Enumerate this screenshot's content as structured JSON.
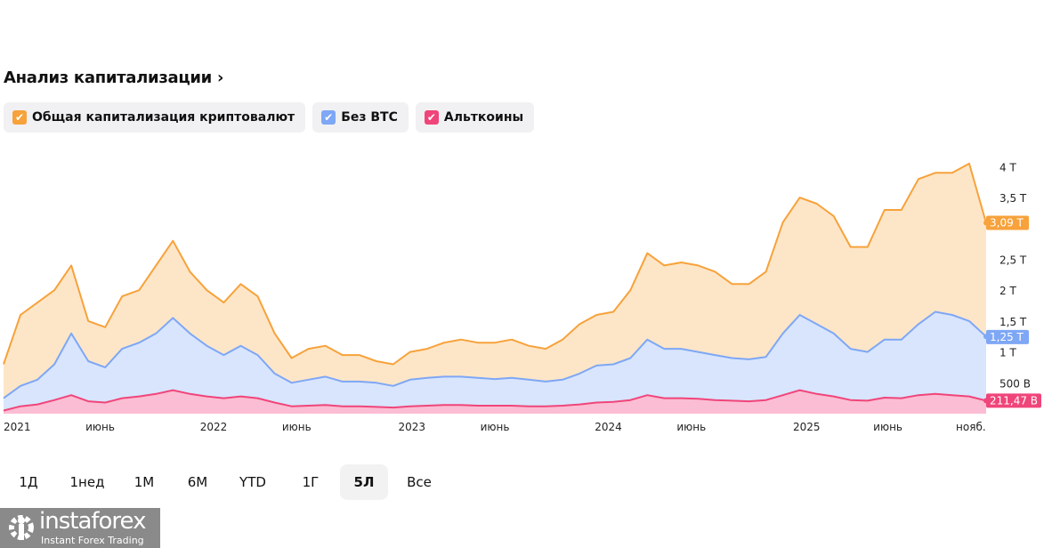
{
  "header": {
    "title": "Анализ капитализации",
    "chevron": "›"
  },
  "legend": [
    {
      "label": "Общая капитализация криптовалют",
      "color": "#f7a23b"
    },
    {
      "label": "Без BTC",
      "color": "#7ea7f5"
    },
    {
      "label": "Альткоины",
      "color": "#f0457a"
    }
  ],
  "chart_data": {
    "type": "area",
    "x_start": "2021-01",
    "x_step": "month",
    "yunit": "T",
    "ylim": [
      0,
      4.3
    ],
    "yticks": [
      {
        "v": 0.5,
        "label": "500 B"
      },
      {
        "v": 1,
        "label": "1 T"
      },
      {
        "v": 1.5,
        "label": "1,5 T"
      },
      {
        "v": 2,
        "label": "2 T"
      },
      {
        "v": 2.5,
        "label": "2,5 T"
      },
      {
        "v": 3,
        "label": "3 T"
      },
      {
        "v": 3.5,
        "label": "3,5 T"
      },
      {
        "v": 4,
        "label": "4 T"
      }
    ],
    "xticks": [
      {
        "i": 0.8,
        "label": "2021"
      },
      {
        "i": 5.7,
        "label": "июнь"
      },
      {
        "i": 12.4,
        "label": "2022"
      },
      {
        "i": 17.3,
        "label": "июнь"
      },
      {
        "i": 24.1,
        "label": "2023"
      },
      {
        "i": 29,
        "label": "июнь"
      },
      {
        "i": 35.7,
        "label": "2024"
      },
      {
        "i": 40.6,
        "label": "июнь"
      },
      {
        "i": 47.4,
        "label": "2025"
      },
      {
        "i": 52.2,
        "label": "июнь"
      },
      {
        "i": 57.1,
        "label": "нояб."
      }
    ],
    "series": [
      {
        "name": "Общая капитализация криптовалют",
        "color": "#f7a23b",
        "fill": "#fde6c8",
        "last_label": "3,09 T",
        "values": [
          0.8,
          1.6,
          1.8,
          2.0,
          2.4,
          1.5,
          1.4,
          1.9,
          2.0,
          2.4,
          2.8,
          2.3,
          2.0,
          1.8,
          2.1,
          1.9,
          1.3,
          0.9,
          1.05,
          1.1,
          0.95,
          0.95,
          0.85,
          0.8,
          1.0,
          1.05,
          1.15,
          1.2,
          1.15,
          1.15,
          1.2,
          1.1,
          1.05,
          1.2,
          1.45,
          1.6,
          1.65,
          2.0,
          2.6,
          2.4,
          2.45,
          2.4,
          2.3,
          2.1,
          2.1,
          2.3,
          3.1,
          3.5,
          3.4,
          3.2,
          2.7,
          2.7,
          3.3,
          3.3,
          3.8,
          3.9,
          3.9,
          4.05,
          3.09
        ]
      },
      {
        "name": "Без BTC",
        "color": "#7ea7f5",
        "fill": "#d8e5fd",
        "last_label": "1,25 T",
        "values": [
          0.25,
          0.45,
          0.55,
          0.8,
          1.3,
          0.85,
          0.75,
          1.05,
          1.15,
          1.3,
          1.55,
          1.3,
          1.1,
          0.95,
          1.1,
          0.95,
          0.65,
          0.5,
          0.55,
          0.6,
          0.52,
          0.52,
          0.5,
          0.45,
          0.55,
          0.58,
          0.6,
          0.6,
          0.58,
          0.56,
          0.58,
          0.55,
          0.52,
          0.55,
          0.65,
          0.78,
          0.8,
          0.9,
          1.2,
          1.05,
          1.05,
          1.0,
          0.95,
          0.9,
          0.88,
          0.92,
          1.3,
          1.6,
          1.45,
          1.3,
          1.05,
          1.0,
          1.2,
          1.2,
          1.45,
          1.65,
          1.6,
          1.5,
          1.25
        ]
      },
      {
        "name": "Альткоины",
        "color": "#f0457a",
        "fill": "#fbbdd3",
        "last_label": "211,47 B",
        "values": [
          0.05,
          0.12,
          0.15,
          0.22,
          0.3,
          0.2,
          0.18,
          0.25,
          0.28,
          0.32,
          0.38,
          0.32,
          0.28,
          0.25,
          0.28,
          0.25,
          0.18,
          0.12,
          0.13,
          0.14,
          0.12,
          0.12,
          0.11,
          0.1,
          0.12,
          0.13,
          0.14,
          0.14,
          0.13,
          0.13,
          0.13,
          0.12,
          0.12,
          0.13,
          0.15,
          0.18,
          0.19,
          0.22,
          0.3,
          0.25,
          0.25,
          0.24,
          0.22,
          0.21,
          0.2,
          0.22,
          0.3,
          0.38,
          0.32,
          0.28,
          0.22,
          0.21,
          0.26,
          0.25,
          0.3,
          0.32,
          0.3,
          0.28,
          0.21
        ]
      }
    ]
  },
  "ranges": {
    "items": [
      "1Д",
      "1нед",
      "1М",
      "6М",
      "YTD",
      "1Г",
      "5Л",
      "Все"
    ],
    "active": "5Л"
  },
  "logo": {
    "name": "instaforex",
    "tagline": "Instant Forex Trading"
  }
}
